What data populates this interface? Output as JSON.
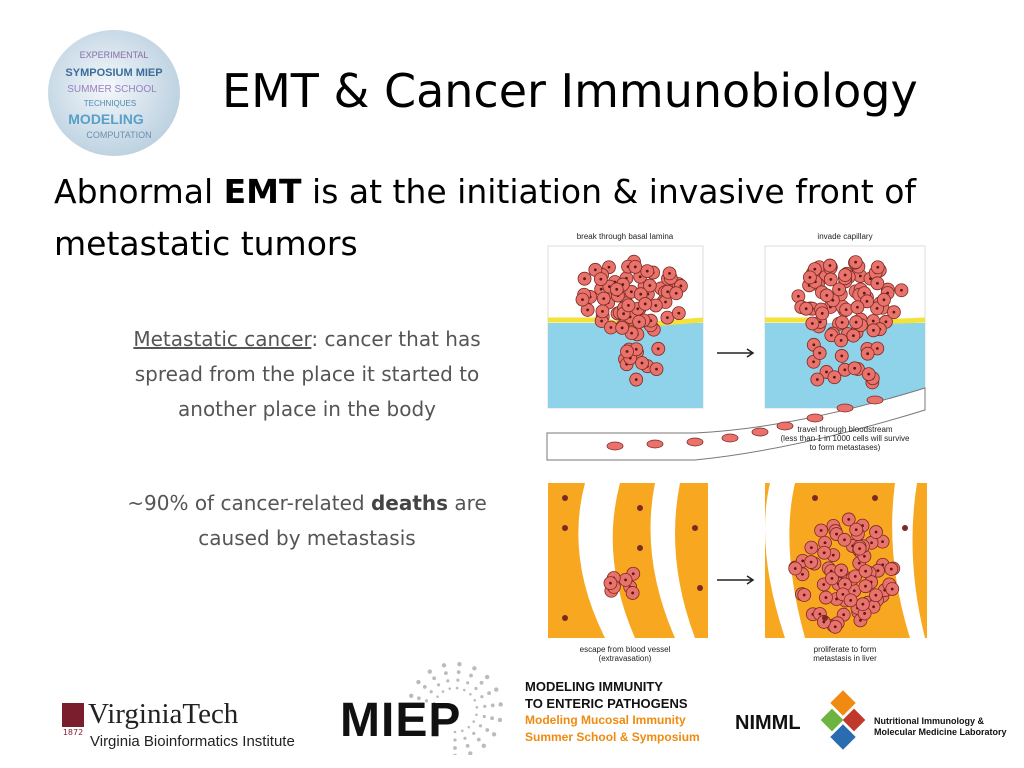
{
  "logo_sphere": {
    "words": [
      "EXPERIMENTAL",
      "SYMPOSIUM MIEP",
      "SUMMER SCHOOL",
      "TECHNIQUES",
      "MODELING",
      "COMPUTATION"
    ]
  },
  "header": {
    "title": "EMT & Cancer Immunobiology"
  },
  "subtitle": {
    "before": "Abnormal ",
    "bold": "EMT",
    "after": " is at the initiation & invasive front of metastatic tumors"
  },
  "body": {
    "definition": {
      "term": "Metastatic cancer",
      "text": ": cancer that has spread from the place it started to another place in the body"
    },
    "fact": {
      "before": "~90% of cancer-related ",
      "bold": "deaths",
      "after": " are caused by metastasis"
    }
  },
  "figure": {
    "labels": {
      "break_through": "break through basal lamina",
      "invade": "invade capillary",
      "travel": [
        "travel through bloodstream",
        "(less than 1 in 1000 cells will survive",
        "to form metastases)"
      ],
      "escape": [
        "escape from blood vessel",
        "(extravasation)"
      ],
      "proliferate": [
        "proliferate to form",
        "metastasis in liver"
      ]
    }
  },
  "footer": {
    "vt": {
      "year": "1872",
      "name": "VirginiaTech",
      "institute": "Virginia Bioinformatics Institute"
    },
    "miep": {
      "name": "MIEP",
      "line1": "MODELING IMMUNITY",
      "line2": "TO ENTERIC PATHOGENS",
      "line3": "Modeling Mucosal Immunity",
      "line4": "Summer School & Symposium"
    },
    "nimml": {
      "name": "NIMML",
      "line1": "Nutritional Immunology &",
      "line2": "Molecular Medicine Laboratory"
    }
  }
}
